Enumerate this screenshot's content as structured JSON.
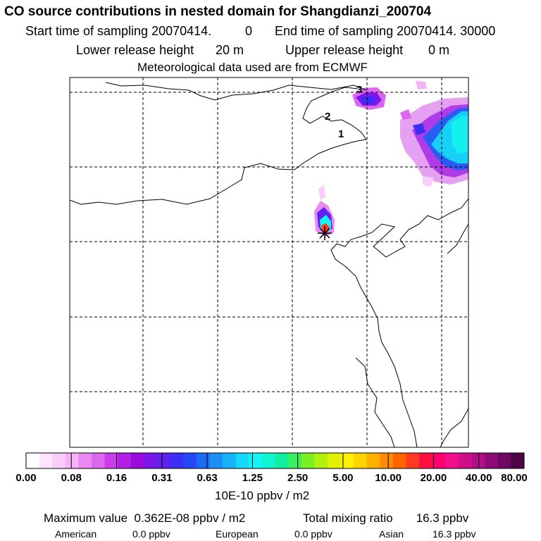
{
  "header": {
    "title": "CO  source contributions in nested domain for Shangdianzi_200704",
    "start_label": "Start time of sampling 20070414.",
    "start_value": "0",
    "end_label": "End time of sampling 20070414. 30000",
    "lower_label": "Lower release height",
    "lower_value": "20 m",
    "upper_label": "Upper release height",
    "upper_value": "0 m",
    "met": "Meteorological data used are from ECMWF"
  },
  "map": {
    "annotations": [
      "1",
      "2",
      "3"
    ],
    "receptor_marker": "star"
  },
  "colorbar": {
    "ticks": [
      "0.00",
      "0.08",
      "0.16",
      "0.31",
      "0.63",
      "1.25",
      "2.50",
      "5.00",
      "10.00",
      "20.00",
      "40.00",
      "80.00"
    ],
    "units": "10E-10 ppbv / m2",
    "colors": [
      "#ffffff",
      "#fde6fd",
      "#f9cdf9",
      "#f3b3f6",
      "#e88af2",
      "#dc67ef",
      "#c93ceb",
      "#b21ee6",
      "#9a0be0",
      "#7d16e8",
      "#5f22ef",
      "#3b2ef5",
      "#2448f5",
      "#1b6cf5",
      "#1b90f7",
      "#16b3f8",
      "#15d7f9",
      "#13f5f5",
      "#10f5d0",
      "#10f0a0",
      "#3af060",
      "#7af020",
      "#b2f010",
      "#e0f000",
      "#fff000",
      "#ffd400",
      "#ffb000",
      "#ff8c00",
      "#ff6400",
      "#ff3a20",
      "#ff1040",
      "#ff0070",
      "#f0108a",
      "#d0108a",
      "#b00e86",
      "#8e0a78",
      "#6e0860",
      "#4e0646"
    ]
  },
  "footer": {
    "max_label": "Maximum value",
    "max_value": "0.362E-08 ppbv / m2",
    "total_label": "Total mixing ratio",
    "total_value": "16.3 ppbv",
    "american_label": "American",
    "american_value": "0.0 ppbv",
    "european_label": "European",
    "european_value": "0.0 ppbv",
    "asian_label": "Asian",
    "asian_value": "16.3 ppbv"
  }
}
